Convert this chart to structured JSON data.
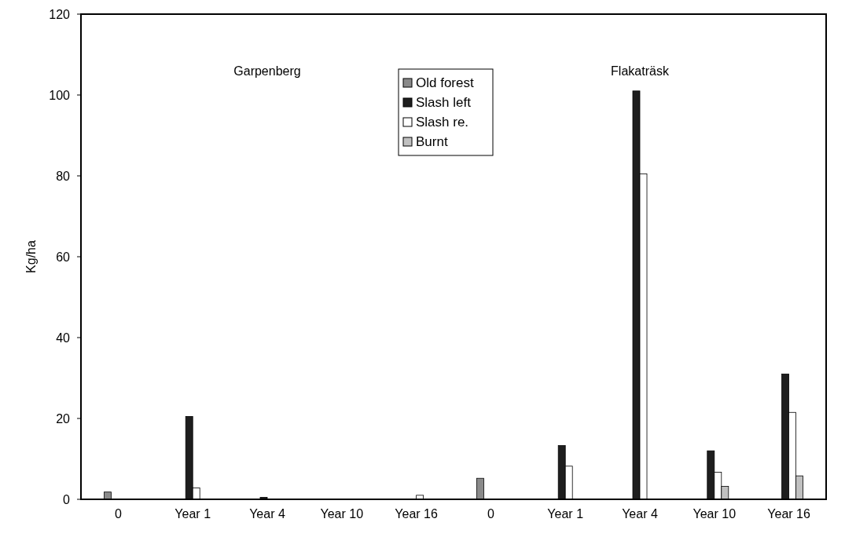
{
  "chart_data": {
    "type": "bar",
    "ylabel": "Kg/ha",
    "categories": [
      "0",
      "Year 1",
      "Year 4",
      "Year 10",
      "Year 16",
      "0",
      "Year 1",
      "Year 4",
      "Year 10",
      "Year 16"
    ],
    "series": [
      {
        "name": "Old forest",
        "color": "#8a8a8a",
        "values": [
          1.8,
          0,
          0,
          0,
          0,
          5.2,
          0,
          0,
          0,
          0
        ]
      },
      {
        "name": "Slash left",
        "color": "#1e1e1e",
        "values": [
          0,
          20.5,
          0.5,
          0,
          0,
          0,
          13.3,
          101,
          12,
          31
        ]
      },
      {
        "name": "Slash re.",
        "color": "#ffffff",
        "values": [
          0,
          2.8,
          0,
          0,
          1,
          0,
          8.2,
          80.5,
          6.7,
          21.5
        ]
      },
      {
        "name": "Burnt",
        "color": "#c0c0c0",
        "values": [
          0,
          0,
          0,
          0,
          0,
          0,
          0,
          0,
          3.2,
          5.8
        ]
      }
    ],
    "ylim": [
      0,
      120
    ],
    "yticks": [
      0,
      20,
      40,
      60,
      80,
      100,
      120
    ],
    "legend": "top",
    "annotations": [
      "Garpenberg",
      "Flakaträsk"
    ]
  }
}
